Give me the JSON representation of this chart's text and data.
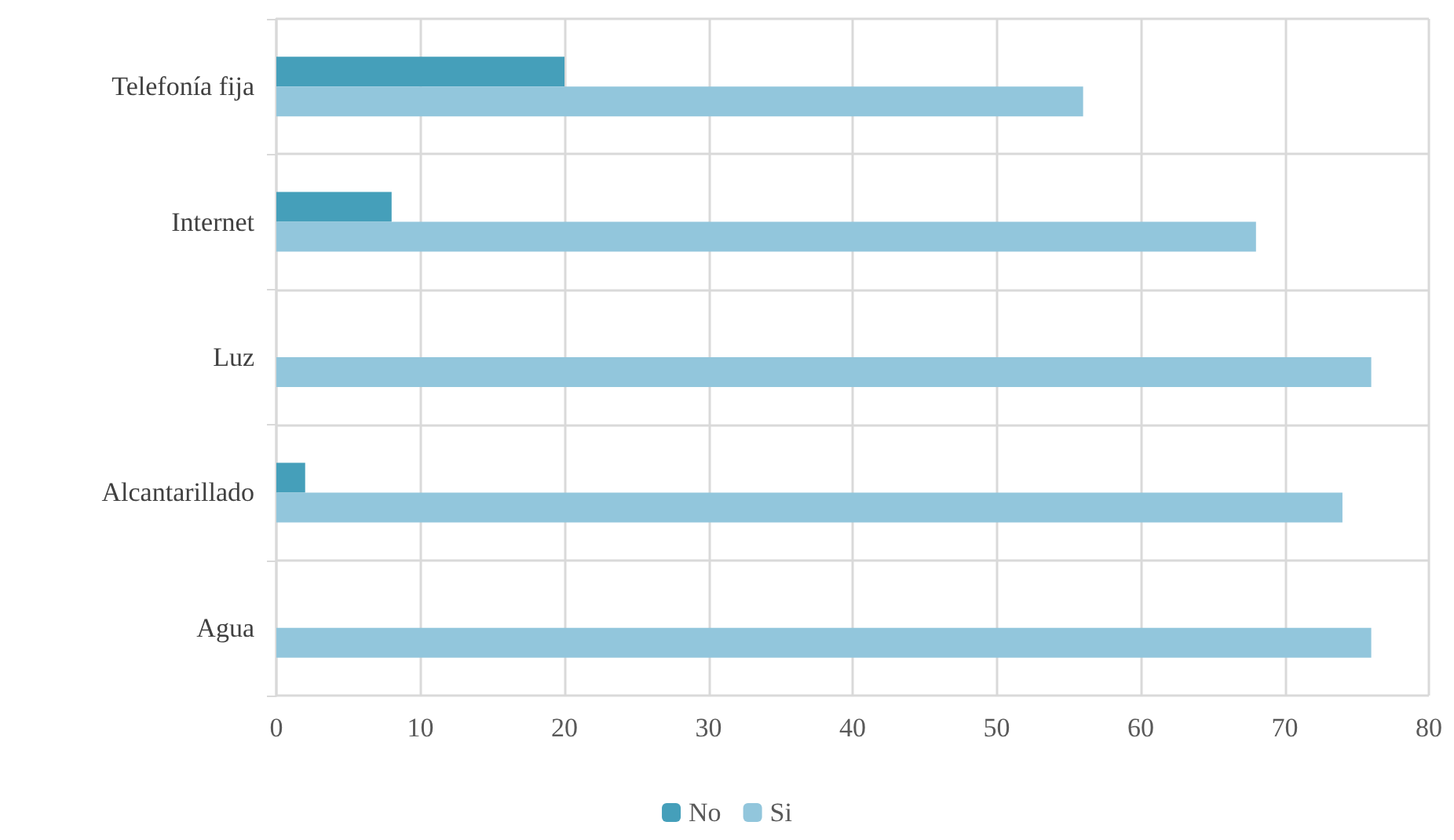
{
  "chart_data": {
    "type": "bar",
    "orientation": "horizontal",
    "categories": [
      "Telefonía fija",
      "Internet",
      "Luz",
      "Alcantarillado",
      "Agua"
    ],
    "series": [
      {
        "name": "No",
        "color": "#459fba",
        "values": [
          20,
          8,
          0,
          2,
          0
        ]
      },
      {
        "name": "Si",
        "color": "#92c6dc",
        "values": [
          56,
          68,
          76,
          74,
          76
        ]
      }
    ],
    "xlim": [
      0,
      80
    ],
    "xticks": [
      0,
      10,
      20,
      30,
      40,
      50,
      60,
      70,
      80
    ],
    "grid": true,
    "legend": "bottom"
  }
}
